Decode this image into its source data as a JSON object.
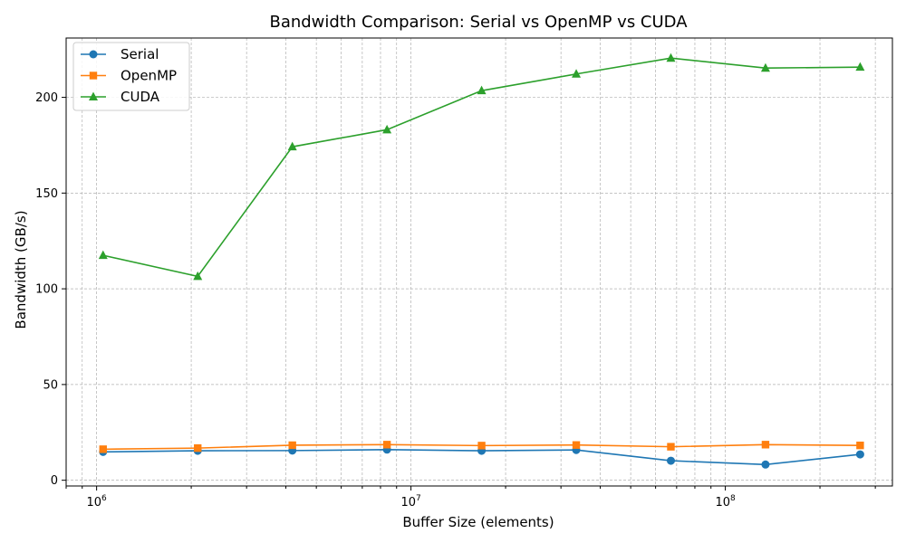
{
  "chart_data": {
    "type": "line",
    "title": "Bandwidth Comparison: Serial vs OpenMP vs CUDA",
    "xlabel": "Buffer Size (elements)",
    "ylabel": "Bandwidth (GB/s)",
    "x_scale": "log",
    "xlim": [
      800000,
      340000000
    ],
    "ylim": [
      -3,
      231
    ],
    "x_ticks": [
      {
        "value": 1000000,
        "base": "10",
        "exp": "6"
      },
      {
        "value": 10000000,
        "base": "10",
        "exp": "7"
      },
      {
        "value": 100000000,
        "base": "10",
        "exp": "8"
      }
    ],
    "y_ticks": [
      0,
      50,
      100,
      150,
      200
    ],
    "grid": true,
    "legend_position": "upper-left",
    "x": [
      1048576,
      2097152,
      4194304,
      8388608,
      16777216,
      33554432,
      67108864,
      134217728,
      268435456
    ],
    "series": [
      {
        "name": "Serial",
        "color": "#1f77b4",
        "marker": "circle",
        "values": [
          14.8,
          15.4,
          15.5,
          16.0,
          15.4,
          15.8,
          10.2,
          8.2,
          13.5
        ]
      },
      {
        "name": "OpenMP",
        "color": "#ff7f0e",
        "marker": "square",
        "values": [
          16.2,
          16.8,
          18.3,
          18.6,
          18.1,
          18.4,
          17.5,
          18.6,
          18.2
        ]
      },
      {
        "name": "CUDA",
        "color": "#2ca02c",
        "marker": "triangle",
        "values": [
          117.5,
          106.5,
          174.2,
          183.1,
          203.5,
          212.2,
          220.5,
          215.3,
          215.8
        ]
      }
    ]
  }
}
